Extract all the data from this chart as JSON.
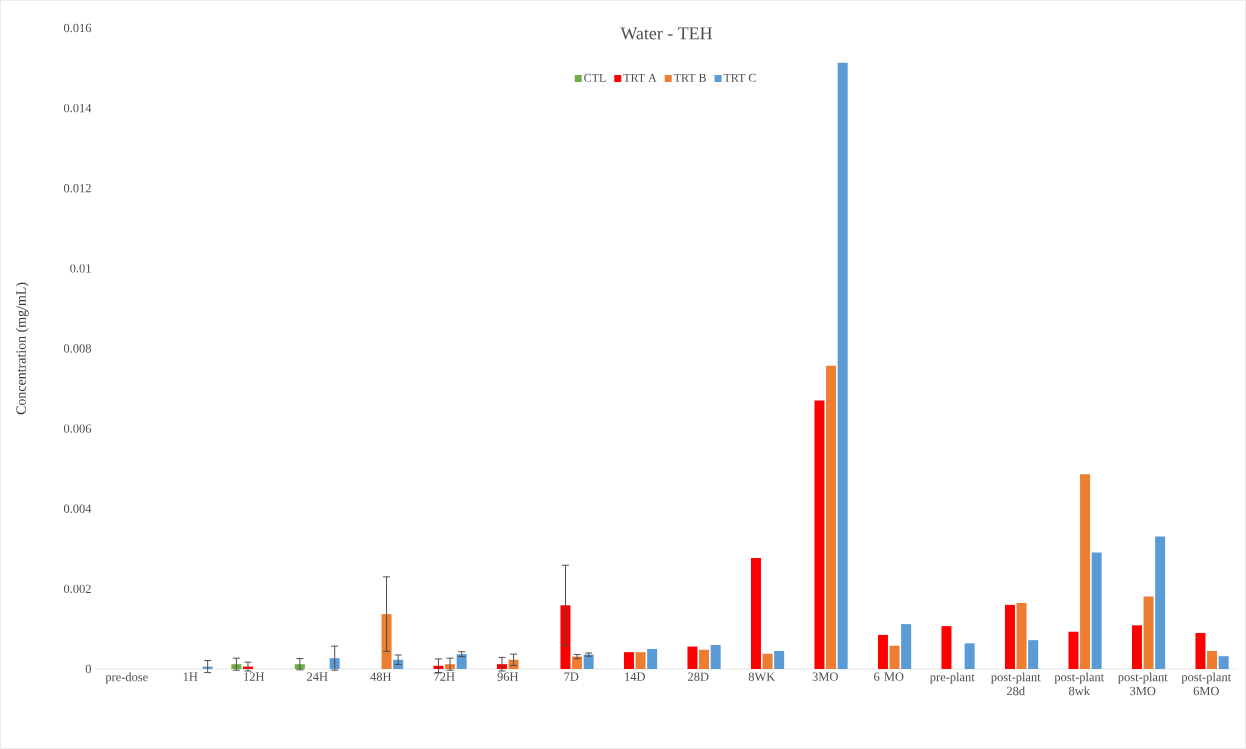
{
  "chart_data": {
    "type": "bar",
    "title": "Water - TEH",
    "ylabel": "Concentration (mg/mL)",
    "categories": [
      "pre-dose",
      "1H",
      "12H",
      "24H",
      "48H",
      "72H",
      "96H",
      "7D",
      "14D",
      "28D",
      "8WK",
      "3MO",
      "6 MO",
      "pre-plant",
      "post-plant 28d",
      "post-plant 8wk",
      "post-plant 3MO",
      "post-plant 6MO"
    ],
    "series": [
      {
        "name": "CTL",
        "color": "#70ad47",
        "values": [
          null,
          null,
          0.00012,
          0.00012,
          null,
          null,
          null,
          null,
          null,
          null,
          null,
          null,
          null,
          null,
          null,
          null,
          null,
          null
        ],
        "errors": [
          null,
          null,
          0.00015,
          0.00014,
          null,
          null,
          null,
          null,
          null,
          null,
          null,
          null,
          null,
          null,
          null,
          null,
          null,
          null
        ]
      },
      {
        "name": "TRT A",
        "color": "#ff0000",
        "values": [
          null,
          null,
          6e-05,
          null,
          null,
          8e-05,
          0.00012,
          0.00159,
          0.00042,
          0.00056,
          0.00277,
          0.0067,
          0.00085,
          0.00107,
          0.0016,
          0.00093,
          0.00109,
          0.0009
        ],
        "errors": [
          null,
          null,
          0.00011,
          null,
          null,
          0.00017,
          0.00017,
          0.001,
          null,
          null,
          null,
          null,
          null,
          null,
          null,
          null,
          null,
          null
        ]
      },
      {
        "name": "TRT B",
        "color": "#ed7d31",
        "values": [
          null,
          null,
          null,
          null,
          0.00137,
          0.00012,
          0.00023,
          0.00031,
          0.00042,
          0.00048,
          0.00038,
          0.00757,
          0.00058,
          null,
          0.00165,
          0.00486,
          0.00181,
          0.00045
        ],
        "errors": [
          null,
          null,
          null,
          null,
          0.00093,
          0.00015,
          0.00014,
          5e-05,
          null,
          null,
          null,
          null,
          null,
          null,
          null,
          null,
          null,
          null
        ]
      },
      {
        "name": "TRT C",
        "color": "#5b9bd5",
        "values": [
          null,
          6e-05,
          null,
          0.00027,
          0.00023,
          0.00037,
          null,
          0.00036,
          0.0005,
          0.0006,
          0.00045,
          0.01513,
          0.00112,
          0.00064,
          0.00072,
          0.00291,
          0.00331,
          0.00032
        ],
        "errors": [
          null,
          0.00015,
          null,
          0.0003,
          0.00012,
          6e-05,
          null,
          4e-05,
          null,
          null,
          null,
          null,
          null,
          null,
          null,
          null,
          null,
          null
        ]
      }
    ],
    "ylim": [
      0,
      0.016
    ],
    "yticks": [
      0,
      0.002,
      0.004,
      0.006,
      0.008,
      0.01,
      0.012,
      0.014,
      0.016
    ],
    "grid": false,
    "legend": "top"
  }
}
